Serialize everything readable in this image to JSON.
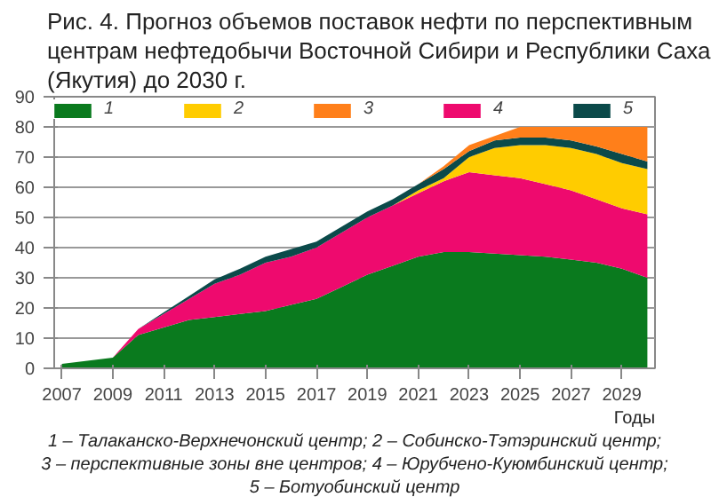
{
  "chart_data": {
    "type": "area",
    "stacked": true,
    "title": "Рис. 4. Прогноз объемов поставок нефти по перспективным центрам нефтедобычи Восточной Сибири и Республики Саха (Якутия) до 2030 г.",
    "xlabel": "Годы",
    "x": [
      2007,
      2008,
      2009,
      2010,
      2011,
      2012,
      2013,
      2014,
      2015,
      2016,
      2017,
      2018,
      2019,
      2020,
      2021,
      2022,
      2023,
      2024,
      2025,
      2026,
      2027,
      2028,
      2029,
      2030
    ],
    "series": [
      {
        "name": "1",
        "color": "#0a7a1e",
        "values": [
          1.5,
          2.5,
          3.5,
          11,
          13.5,
          16,
          17,
          18,
          19,
          21,
          23,
          27,
          31,
          34,
          37,
          38.5,
          38.5,
          38,
          37.5,
          37,
          36,
          35,
          33,
          30
        ]
      },
      {
        "name": "4",
        "color": "#ee0a6e",
        "values": [
          0,
          0,
          0,
          2,
          4.5,
          7,
          11,
          13,
          16,
          16,
          17,
          18,
          19,
          20,
          21,
          23.5,
          26.5,
          26,
          25.5,
          24,
          23,
          21,
          20,
          21
        ]
      },
      {
        "name": "2",
        "color": "#ffcc00",
        "values": [
          0,
          0,
          0,
          0,
          0,
          0,
          0,
          0,
          0,
          0,
          0,
          0,
          0,
          0,
          1,
          1,
          5,
          9,
          11,
          13,
          14,
          15,
          15,
          15
        ]
      },
      {
        "name": "5",
        "color": "#0b4a4a",
        "values": [
          0,
          0,
          0,
          0,
          0.5,
          1,
          1.5,
          2,
          2,
          2.5,
          2,
          2,
          2,
          2,
          2,
          3,
          2,
          2.5,
          2.5,
          2.5,
          2.5,
          2.5,
          3,
          2.5
        ]
      },
      {
        "name": "3",
        "color": "#ff7f1a",
        "values": [
          0,
          0,
          0,
          0,
          0,
          0,
          0,
          0,
          0,
          0,
          0,
          0,
          0,
          0,
          0,
          1,
          2,
          1.5,
          3.5,
          3.5,
          4.5,
          6.5,
          9,
          11.5
        ]
      }
    ],
    "xlim": [
      2006.7,
      2030.3
    ],
    "ylim": [
      0,
      90
    ],
    "xticks": [
      2007,
      2009,
      2011,
      2013,
      2015,
      2017,
      2019,
      2021,
      2023,
      2025,
      2027,
      2029
    ],
    "yticks": [
      0,
      10,
      20,
      30,
      40,
      50,
      60,
      70,
      80,
      90
    ],
    "grid": "y",
    "legend": "top",
    "annotations": [
      "1 – Талаканско-Верхнечонский центр; 2 – Собинско-Тэтэринский центр;",
      "3 – перспективные зоны вне центров; 4 – Юрубчено-Куюмбинский центр;",
      "5 – Ботуобинский центр"
    ]
  }
}
